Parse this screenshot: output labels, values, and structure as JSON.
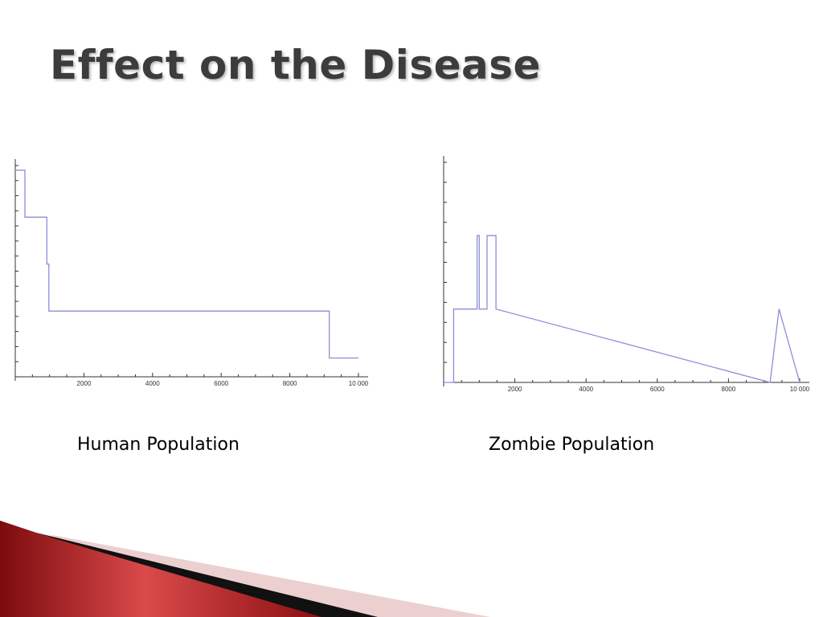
{
  "slide": {
    "title": "Effect on the Disease",
    "captions": {
      "human": "Human Population",
      "zombie": "Zombie Population"
    },
    "colors": {
      "line": "#8a8fd6",
      "axis": "#333333",
      "title": "#3c3c3c",
      "accent_dark": "#8b0f12",
      "accent_light": "#e8c8c8"
    }
  },
  "chart_data": [
    {
      "type": "line",
      "step": true,
      "xlim": [
        0,
        10000
      ],
      "x_ticks": [
        2000,
        4000,
        6000,
        8000,
        10000
      ],
      "x_tick_labels": [
        "2000",
        "4000",
        "6000",
        "8000",
        "10 000"
      ],
      "y_tick_labels_shown": false,
      "y_minor_ticks": 14,
      "ylim": [
        0,
        4.5
      ],
      "grid": false,
      "series": [
        {
          "x": [
            0,
            280,
            280,
            920,
            920,
            980,
            980,
            9150,
            9150,
            10000
          ],
          "y": [
            4.4,
            4.4,
            3.4,
            3.4,
            2.4,
            2.4,
            1.4,
            1.4,
            0.4,
            0.4
          ]
        }
      ]
    },
    {
      "type": "line",
      "step": true,
      "xlim": [
        0,
        10000
      ],
      "x_ticks": [
        2000,
        4000,
        6000,
        8000,
        10000
      ],
      "x_tick_labels": [
        "2000",
        "4000",
        "6000",
        "8000",
        "10 000"
      ],
      "y_tick_labels_shown": false,
      "y_minor_ticks": 11,
      "ylim": [
        0,
        3
      ],
      "grid": false,
      "series": [
        {
          "x": [
            0,
            280,
            280,
            940,
            940,
            1000,
            1000,
            1220,
            1220,
            1470,
            1470,
            9170,
            9170,
            9420,
            9420,
            10000
          ],
          "y": [
            0,
            0,
            1,
            1,
            2,
            2,
            1,
            1,
            2,
            2,
            1,
            0,
            0,
            1,
            1,
            0
          ]
        }
      ]
    }
  ]
}
